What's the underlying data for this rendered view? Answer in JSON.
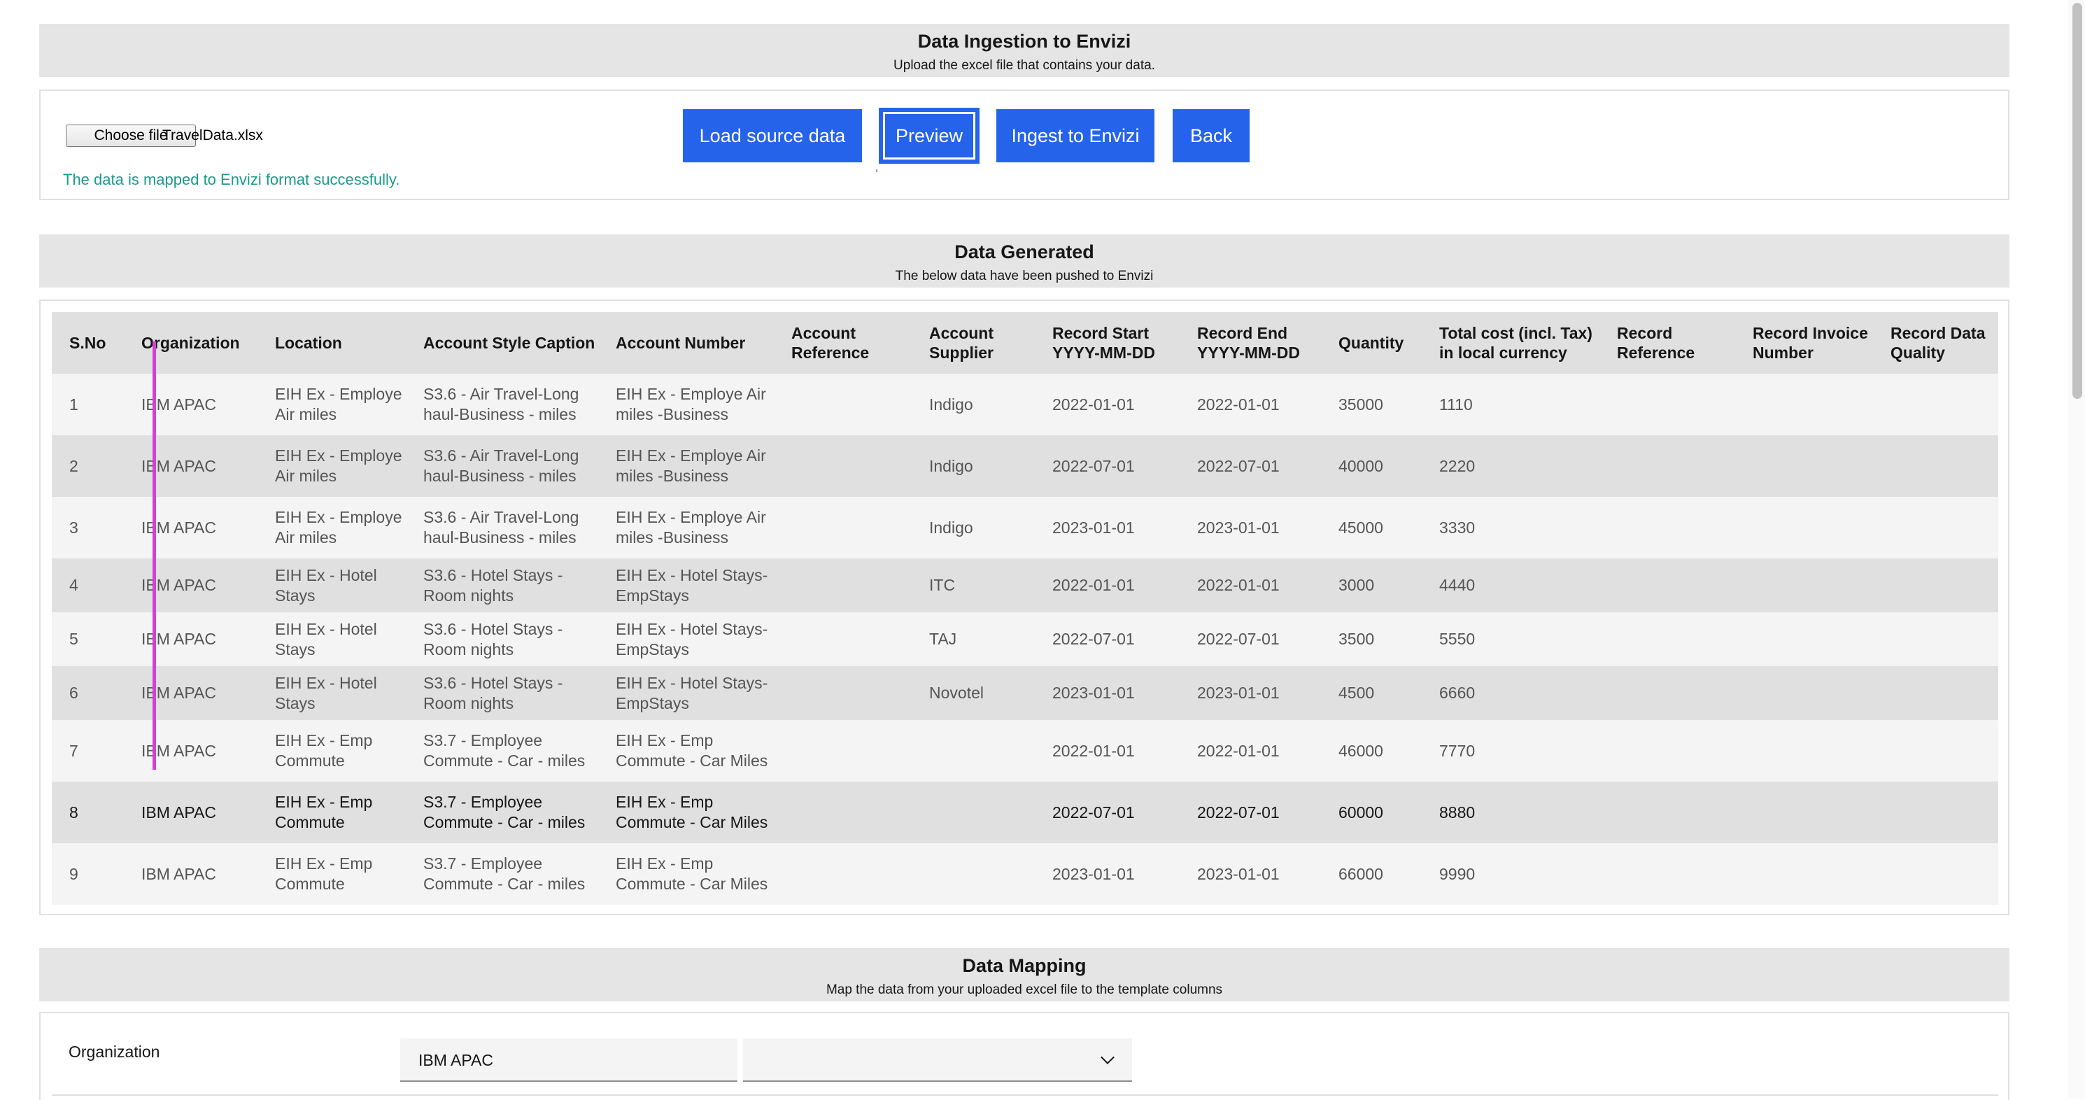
{
  "ingestion": {
    "title": "Data Ingestion to Envizi",
    "subtitle": "Upload the excel file that contains your data.",
    "choose_file_label": "Choose file",
    "file_name": "TravelData.xlsx",
    "success_message": "The data is mapped to Envizi format successfully.",
    "buttons": {
      "load": "Load source data",
      "preview": "Preview",
      "ingest": "Ingest to Envizi",
      "back": "Back"
    }
  },
  "generated": {
    "title": "Data Generated",
    "subtitle": "The below data have been pushed to Envizi",
    "columns": [
      "S.No",
      "Organization",
      "Location",
      "Account Style Caption",
      "Account Number",
      "Account Reference",
      "Account Supplier",
      "Record Start YYYY-MM-DD",
      "Record End YYYY-MM-DD",
      "Quantity",
      "Total cost (incl. Tax) in local currency",
      "Record Reference",
      "Record Invoice Number",
      "Record Data Quality"
    ],
    "rows": [
      [
        "1",
        "IBM APAC",
        "EIH Ex - Employe Air miles",
        "S3.6 - Air Travel-Long haul-Business - miles",
        "EIH Ex - Employe Air miles -Business",
        "",
        "Indigo",
        "2022-01-01",
        "2022-01-01",
        "35000",
        "1110",
        "",
        "",
        ""
      ],
      [
        "2",
        "IBM APAC",
        "EIH Ex - Employe Air miles",
        "S3.6 - Air Travel-Long haul-Business - miles",
        "EIH Ex - Employe Air miles -Business",
        "",
        "Indigo",
        "2022-07-01",
        "2022-07-01",
        "40000",
        "2220",
        "",
        "",
        ""
      ],
      [
        "3",
        "IBM APAC",
        "EIH Ex - Employe Air miles",
        "S3.6 - Air Travel-Long haul-Business - miles",
        "EIH Ex - Employe Air miles -Business",
        "",
        "Indigo",
        "2023-01-01",
        "2023-01-01",
        "45000",
        "3330",
        "",
        "",
        ""
      ],
      [
        "4",
        "IBM APAC",
        "EIH Ex - Hotel Stays",
        "S3.6 - Hotel Stays - Room nights",
        "EIH Ex - Hotel Stays-EmpStays",
        "",
        "ITC",
        "2022-01-01",
        "2022-01-01",
        "3000",
        "4440",
        "",
        "",
        ""
      ],
      [
        "5",
        "IBM APAC",
        "EIH Ex - Hotel Stays",
        "S3.6 - Hotel Stays - Room nights",
        "EIH Ex - Hotel Stays-EmpStays",
        "",
        "TAJ",
        "2022-07-01",
        "2022-07-01",
        "3500",
        "5550",
        "",
        "",
        ""
      ],
      [
        "6",
        "IBM APAC",
        "EIH Ex - Hotel Stays",
        "S3.6 - Hotel Stays - Room nights",
        "EIH Ex - Hotel Stays-EmpStays",
        "",
        "Novotel",
        "2023-01-01",
        "2023-01-01",
        "4500",
        "6660",
        "",
        "",
        ""
      ],
      [
        "7",
        "IBM APAC",
        "EIH Ex - Emp Commute",
        "S3.7 - Employee Commute - Car - miles",
        "EIH Ex - Emp Commute - Car Miles",
        "",
        "",
        "2022-01-01",
        "2022-01-01",
        "46000",
        "7770",
        "",
        "",
        ""
      ],
      [
        "8",
        "IBM APAC",
        "EIH Ex - Emp Commute",
        "S3.7 - Employee Commute - Car - miles",
        "EIH Ex - Emp Commute - Car Miles",
        "",
        "",
        "2022-07-01",
        "2022-07-01",
        "60000",
        "8880",
        "",
        "",
        ""
      ],
      [
        "9",
        "IBM APAC",
        "EIH Ex - Emp Commute",
        "S3.7 - Employee Commute - Car - miles",
        "EIH Ex - Emp Commute - Car Miles",
        "",
        "",
        "2023-01-01",
        "2023-01-01",
        "66000",
        "9990",
        "",
        "",
        ""
      ]
    ]
  },
  "mapping": {
    "title": "Data Mapping",
    "subtitle": "Map the data from your uploaded excel file to the template columns",
    "field_label": "Organization",
    "field_value": "IBM APAC",
    "select_value": ""
  },
  "colors": {
    "button_blue": "#2563eb",
    "success_teal": "#1a9b8a",
    "band_gray": "#e5e5e5",
    "highlight_bar": "#d53fd8"
  }
}
